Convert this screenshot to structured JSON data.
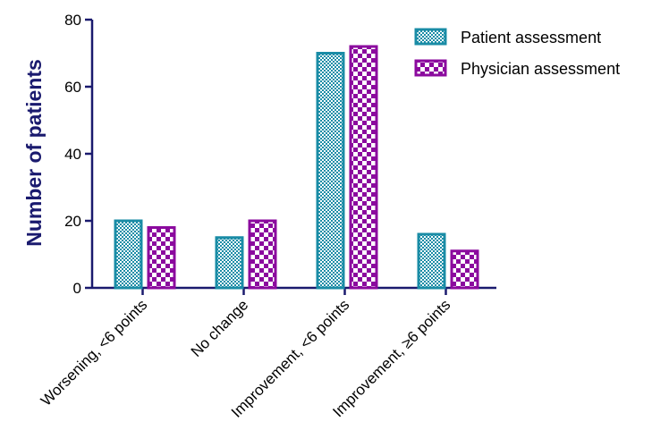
{
  "chart_data": {
    "type": "bar",
    "title": "",
    "xlabel": "",
    "ylabel": "Number of patients",
    "ylim": [
      0,
      80
    ],
    "yticks": [
      0,
      20,
      40,
      60,
      80
    ],
    "grid": false,
    "legend_position": "top-right",
    "categories": [
      "Worsening, <6 points",
      "No change",
      "Improvement, <6 points",
      "Improvement, ≥6 points"
    ],
    "series": [
      {
        "name": "Patient assessment",
        "values": [
          20,
          15,
          70,
          16
        ],
        "color": "#1a8ca6",
        "pattern": "fine-dots"
      },
      {
        "name": "Physician assessment",
        "values": [
          18,
          20,
          72,
          11
        ],
        "color": "#8b0a9e",
        "pattern": "checker"
      }
    ]
  }
}
